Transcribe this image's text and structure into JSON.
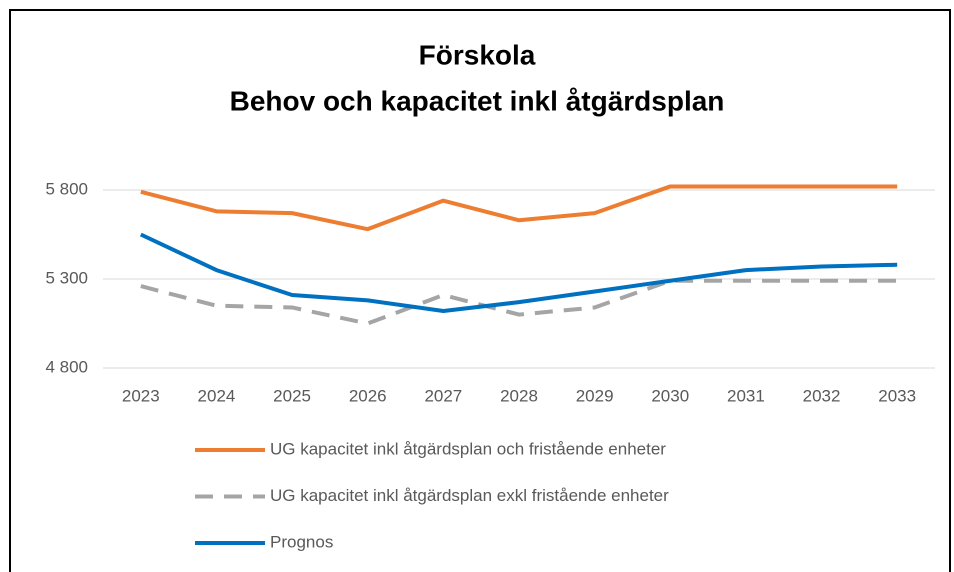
{
  "chart_data": {
    "type": "line",
    "title": [
      "Förskola",
      "Behov och kapacitet inkl åtgärdsplan"
    ],
    "categories": [
      "2023",
      "2024",
      "2025",
      "2026",
      "2027",
      "2028",
      "2029",
      "2030",
      "2031",
      "2032",
      "2033"
    ],
    "series": [
      {
        "name": "UG kapacitet inkl åtgärdsplan och fristående enheter",
        "color": "#ed7d31",
        "dash": false,
        "values": [
          5790,
          5680,
          5670,
          5580,
          5740,
          5630,
          5670,
          5820,
          5820,
          5820,
          5820
        ]
      },
      {
        "name": "UG kapacitet inkl åtgärdsplan exkl fristående enheter",
        "color": "#a5a5a5",
        "dash": true,
        "values": [
          5260,
          5150,
          5140,
          5050,
          5210,
          5100,
          5140,
          5290,
          5290,
          5290,
          5290
        ]
      },
      {
        "name": "Prognos",
        "color": "#0070c0",
        "dash": false,
        "values": [
          5550,
          5350,
          5210,
          5180,
          5120,
          5170,
          5230,
          5290,
          5350,
          5370,
          5380
        ]
      }
    ],
    "ylim": [
      4800,
      5800
    ],
    "yticks": [
      {
        "value": 4800,
        "label": "4 800"
      },
      {
        "value": 5300,
        "label": "5 300"
      },
      {
        "value": 5800,
        "label": "5 800"
      }
    ],
    "grid": true
  }
}
